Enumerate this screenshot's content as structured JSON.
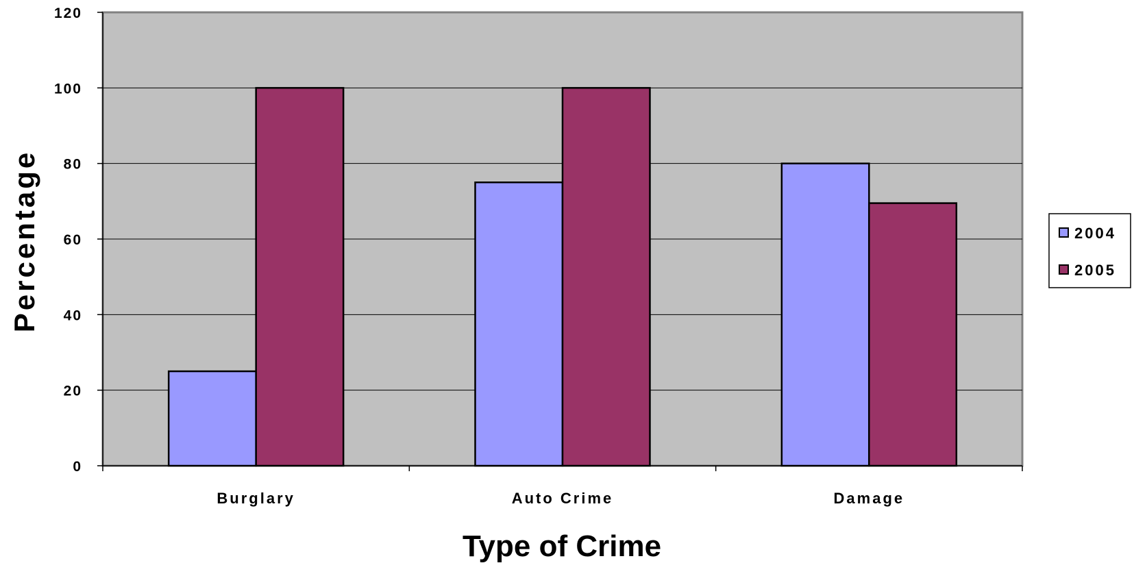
{
  "chart_data": {
    "type": "bar",
    "categories": [
      "Burglary",
      "Auto Crime",
      "Damage"
    ],
    "series": [
      {
        "name": "2004",
        "values": [
          25,
          75,
          80
        ],
        "color": "#9999ff"
      },
      {
        "name": "2005",
        "values": [
          100,
          100,
          69.5
        ],
        "color": "#993366"
      }
    ],
    "xlabel": "Type of Crime",
    "ylabel": "Percentage",
    "ylim": [
      0,
      120
    ],
    "yticks": [
      0,
      20,
      40,
      60,
      80,
      100,
      120
    ],
    "grid": true,
    "plot_background": "#c0c0c0",
    "legend_position": "right"
  }
}
